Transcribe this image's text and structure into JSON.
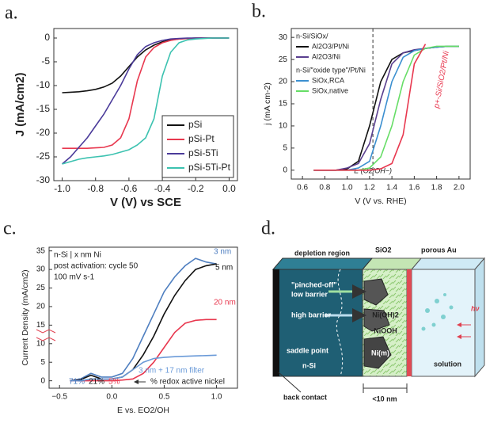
{
  "chart_data": [
    {
      "type": "line",
      "panel_label": "a.",
      "xlabel": "V (V) vs SCE",
      "ylabel": "J (mA/cm2)",
      "xlim": [
        -1.05,
        0.05
      ],
      "ylim": [
        -30,
        2
      ],
      "xticks": [
        {
          "value": -1.0,
          "label": "-1.0"
        },
        -0.8,
        -0.6,
        -0.4,
        -0.2,
        {
          "value": 0.0,
          "label": "0.0"
        }
      ],
      "yticks": [
        -30,
        -25,
        -20,
        -15,
        -10,
        -5,
        0
      ],
      "x": [
        -1.0,
        -0.95,
        -0.9,
        -0.85,
        -0.8,
        -0.75,
        -0.7,
        -0.65,
        -0.6,
        -0.55,
        -0.5,
        -0.45,
        -0.4,
        -0.35,
        -0.3,
        -0.25,
        -0.2,
        -0.15,
        -0.1,
        -0.05,
        0.0
      ],
      "series": [
        {
          "name": "pSi",
          "color": "#111111",
          "values": [
            -11.5,
            -11.4,
            -11.3,
            -11.1,
            -10.8,
            -10.3,
            -9.5,
            -8.0,
            -6.0,
            -4.0,
            -2.5,
            -1.5,
            -0.8,
            -0.4,
            -0.2,
            -0.1,
            0,
            0,
            0,
            0,
            0
          ]
        },
        {
          "name": "pSi-Pt",
          "color": "#e8384f",
          "values": [
            -23.2,
            -23.2,
            -23.2,
            -23.2,
            -23.1,
            -23.0,
            -22.5,
            -21,
            -17,
            -9,
            -4,
            -2,
            -1,
            -0.5,
            -0.2,
            -0.1,
            0,
            0,
            0,
            0,
            0
          ]
        },
        {
          "name": "pSi-5Ti",
          "color": "#4b3b9a",
          "values": [
            -26.5,
            -25,
            -23,
            -21,
            -18.5,
            -16,
            -13,
            -10,
            -6.5,
            -3.5,
            -1.8,
            -1,
            -0.5,
            -0.2,
            -0.1,
            0,
            0,
            0,
            0,
            0,
            0
          ]
        },
        {
          "name": "pSi-5Ti-Pt",
          "color": "#3cc2b0",
          "values": [
            -26.5,
            -26,
            -25.5,
            -25.2,
            -25,
            -24.8,
            -24.5,
            -24,
            -23.5,
            -22.5,
            -21,
            -17,
            -8,
            -3,
            -1,
            -0.4,
            -0.2,
            -0.1,
            0,
            0,
            0
          ]
        }
      ]
    },
    {
      "type": "line",
      "panel_label": "b.",
      "xlabel": "V (V vs. RHE)",
      "ylabel": "j (mA cm-2)",
      "xlim": [
        0.5,
        2.1
      ],
      "ylim": [
        -2,
        32
      ],
      "xticks": [
        0.6,
        0.8,
        {
          "value": 1.0,
          "label": "1.0"
        },
        1.2,
        1.4,
        1.6,
        1.8,
        {
          "value": 2.0,
          "label": "2.0"
        }
      ],
      "yticks": [
        0,
        5,
        10,
        15,
        20,
        25,
        30
      ],
      "legend_headings": [
        "n-Si/SiOx/",
        "n-Si/\"oxide type\"/Pt/Ni"
      ],
      "reference_line": {
        "x": 1.23,
        "label": "E (O2/OH−)"
      },
      "x": [
        0.7,
        0.8,
        0.9,
        1.0,
        1.1,
        1.2,
        1.3,
        1.4,
        1.5,
        1.6,
        1.7,
        1.8,
        1.9,
        2.0
      ],
      "series": [
        {
          "name": "Al2O3/Pt/Ni",
          "color": "#111111",
          "values": [
            0,
            0,
            0,
            0.3,
            2,
            10,
            20,
            25,
            26.5,
            27,
            27.5,
            27.8,
            28,
            28
          ]
        },
        {
          "name": "Al2O3/Ni",
          "color": "#5a3f8f",
          "values": [
            0,
            0,
            0,
            0.5,
            1.5,
            6,
            16,
            24,
            26.5,
            27.2,
            27.5,
            27.8,
            28,
            28
          ]
        },
        {
          "name": "SiOx,RCA",
          "color": "#3b8fd0",
          "values": [
            0,
            0,
            0,
            0,
            0.5,
            2,
            10,
            20,
            25.5,
            27,
            27.5,
            27.8,
            28,
            28
          ]
        },
        {
          "name": "SiOx,native",
          "color": "#66dd66",
          "values": [
            0,
            0,
            0,
            0,
            0,
            0.5,
            3,
            10,
            20,
            26,
            27.5,
            28,
            28,
            28
          ]
        },
        {
          "name": "p+-Si/SiO2/Pt/Ni",
          "color": "#e8384f",
          "values": [
            0,
            0,
            0,
            0,
            0,
            0,
            0.3,
            1.5,
            8,
            24,
            28.5,
            null,
            null,
            null
          ]
        }
      ]
    },
    {
      "type": "line",
      "panel_label": "c.",
      "xlabel": "E vs. EO2/OH",
      "ylabel": "Current Density (mA/cm2)",
      "xlim": [
        -0.6,
        1.2
      ],
      "ylim": [
        -2,
        36
      ],
      "xticks": [
        {
          "value": -0.5,
          "label": "−0.5"
        },
        {
          "value": 0.0,
          "label": "0.0"
        },
        0.5,
        {
          "value": 1.0,
          "label": "1.0"
        }
      ],
      "yticks": [
        0,
        5,
        10,
        15,
        20,
        25,
        30,
        35
      ],
      "annotations": [
        "n-Si | x nm Ni",
        "post activation: cycle 50",
        "100 mV s-1"
      ],
      "redox_active": {
        "label": "% redox active nickel",
        "values": [
          71,
          21,
          5
        ],
        "value_labels": [
          "71%",
          "21%",
          "5%"
        ]
      },
      "x": [
        -0.4,
        -0.3,
        -0.2,
        -0.1,
        0.0,
        0.1,
        0.2,
        0.3,
        0.4,
        0.5,
        0.6,
        0.7,
        0.8,
        0.9,
        1.0
      ],
      "series": [
        {
          "name": "3 nm",
          "color": "#4f7fc0",
          "values": [
            0,
            0.5,
            2,
            1,
            1,
            2,
            6,
            12,
            18,
            24,
            28,
            31,
            33,
            32,
            31.5
          ]
        },
        {
          "name": "5 nm",
          "color": "#111111",
          "values": [
            0,
            0.3,
            1.5,
            0.5,
            0.5,
            1,
            3,
            7,
            12,
            18,
            23,
            27,
            30,
            31,
            31.5
          ]
        },
        {
          "name": "20 nm",
          "color": "#e8384f",
          "values": [
            0,
            0,
            0,
            0,
            0,
            0.2,
            0.5,
            2,
            5,
            9,
            13,
            15.5,
            16.3,
            16.5,
            16.5
          ]
        },
        {
          "name": "3 nm + 17 nm filter",
          "color": "#6a9ad8",
          "values": [
            0,
            0,
            0.5,
            0.5,
            0.5,
            1,
            3,
            5,
            6,
            6.3,
            6.5,
            6.6,
            6.7,
            6.8,
            6.9
          ]
        }
      ]
    }
  ],
  "diagram": {
    "panel_label": "d.",
    "depletion_region": "depletion region",
    "sio2": "SiO2",
    "porous_au": "porous Au",
    "pinched_off": "\"pinched-off\"",
    "low_barrier": "low barrier",
    "high_barrier": "high barrier",
    "ni_oh": "Ni(OH)2",
    "niooh": "NiOOH",
    "saddle_point": "saddle point",
    "ni_m": "Ni(m)",
    "n_si": "n-Si",
    "hv": "hν",
    "solution": "solution",
    "back_contact": "back contact",
    "thickness": "<10 nm"
  }
}
